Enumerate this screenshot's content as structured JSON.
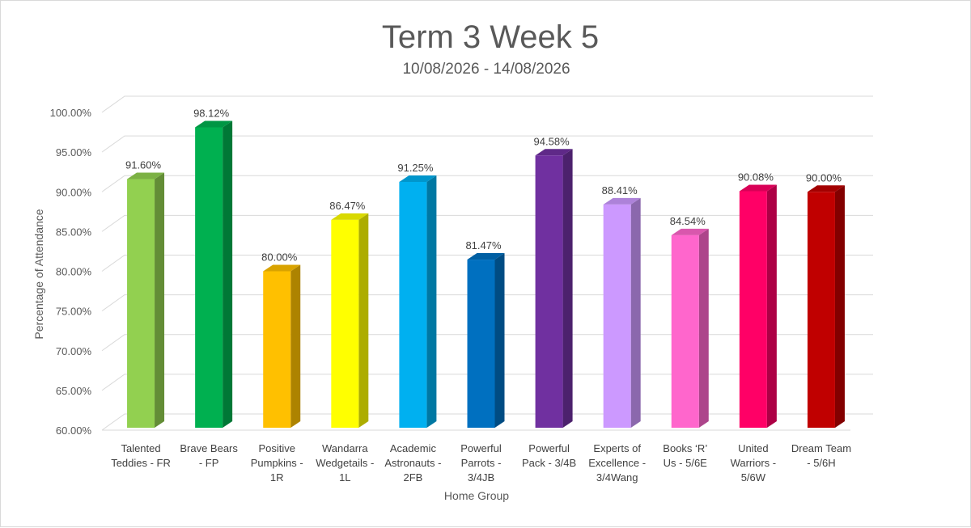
{
  "chart_data": {
    "type": "bar",
    "style": "3d-column",
    "title": "Term 3 Week 5",
    "subtitle": "10/08/2026 - 14/08/2026",
    "xlabel": "Home Group",
    "ylabel": "Percentage of Attendance",
    "ylim": [
      60,
      100
    ],
    "ytick_step": 5,
    "ytick_labels": [
      "60.00%",
      "65.00%",
      "70.00%",
      "75.00%",
      "80.00%",
      "85.00%",
      "90.00%",
      "95.00%",
      "100.00%"
    ],
    "grid": true,
    "legend": "none",
    "categories": [
      [
        "Talented",
        "Teddies - FR"
      ],
      [
        "Brave Bears",
        "- FP"
      ],
      [
        "Positive",
        "Pumpkins -",
        "1R"
      ],
      [
        "Wandarra",
        "Wedgetails -",
        "1L"
      ],
      [
        "Academic",
        "Astronauts -",
        "2FB"
      ],
      [
        "Powerful",
        "Parrots -",
        "3/4JB"
      ],
      [
        "Powerful",
        "Pack - 3/4B"
      ],
      [
        "Experts of",
        "Excellence -",
        "3/4Wang"
      ],
      [
        "Books ‘R’",
        "Us - 5/6E"
      ],
      [
        "United",
        "Warriors -",
        "5/6W"
      ],
      [
        "Dream Team",
        "- 5/6H"
      ]
    ],
    "values": [
      91.6,
      98.12,
      80.0,
      86.47,
      91.25,
      81.47,
      94.58,
      88.41,
      84.54,
      90.08,
      90.0
    ],
    "value_labels": [
      "91.60%",
      "98.12%",
      "80.00%",
      "86.47%",
      "91.25%",
      "81.47%",
      "94.58%",
      "88.41%",
      "84.54%",
      "90.08%",
      "90.00%"
    ],
    "colors": [
      "#92d050",
      "#00b050",
      "#ffc000",
      "#ffff00",
      "#00b0f0",
      "#0070c0",
      "#7030a0",
      "#cc99ff",
      "#ff66cc",
      "#ff0066",
      "#c00000"
    ]
  }
}
